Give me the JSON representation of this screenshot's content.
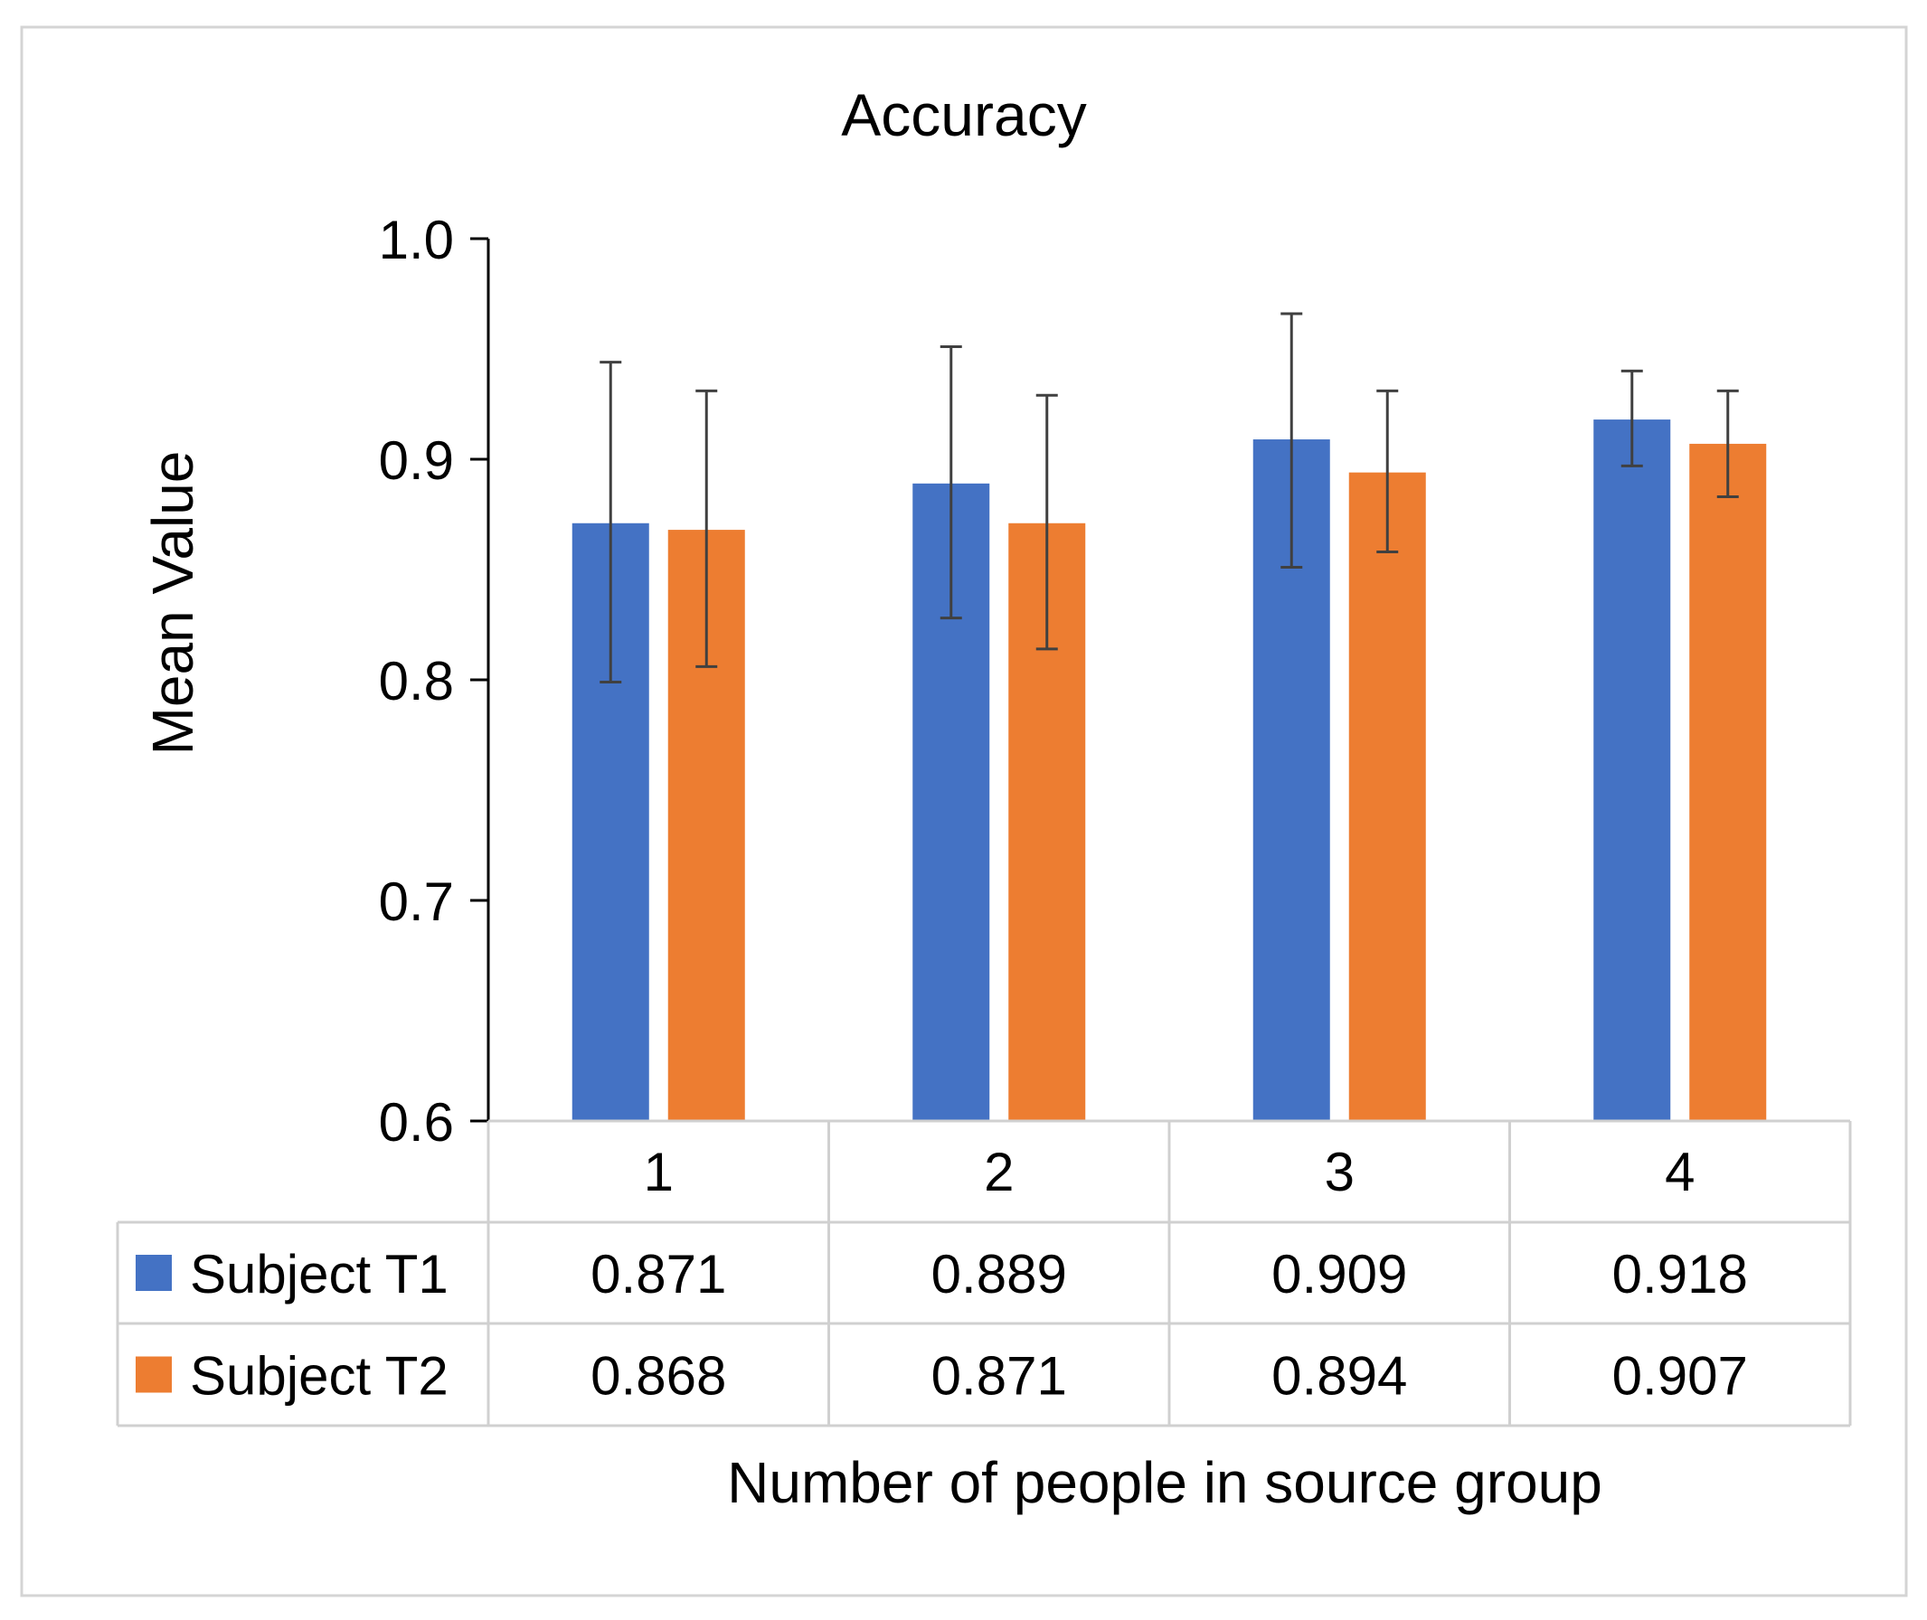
{
  "chart_data": {
    "type": "bar",
    "title": "Accuracy",
    "xlabel": "Number of people in source group",
    "ylabel": "Mean  Value",
    "ylim": [
      0.6,
      1.0
    ],
    "yticks": [
      0.6,
      0.7,
      0.8,
      0.9,
      1.0
    ],
    "ytick_labels": [
      "0.6",
      "0.7",
      "0.8",
      "0.9",
      "1.0"
    ],
    "categories": [
      "1",
      "2",
      "3",
      "4"
    ],
    "legend_placement": "data-table",
    "series": [
      {
        "name": "Subject T1",
        "color": "#4472C4",
        "values": [
          0.871,
          0.889,
          0.909,
          0.918
        ],
        "labels": [
          "0.871",
          "0.889",
          "0.909",
          "0.918"
        ],
        "err_low": [
          0.799,
          0.828,
          0.851,
          0.897
        ],
        "err_high": [
          0.944,
          0.951,
          0.966,
          0.94
        ]
      },
      {
        "name": "Subject T2",
        "color": "#ED7D31",
        "values": [
          0.868,
          0.871,
          0.894,
          0.907
        ],
        "labels": [
          "0.868",
          "0.871",
          "0.894",
          "0.907"
        ],
        "err_low": [
          0.806,
          0.814,
          0.858,
          0.883
        ],
        "err_high": [
          0.931,
          0.929,
          0.931,
          0.931
        ]
      }
    ]
  }
}
